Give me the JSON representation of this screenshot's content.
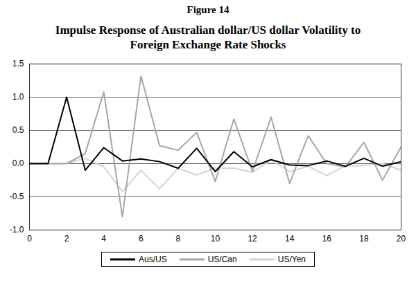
{
  "chart_data": {
    "type": "line",
    "title": "Figure 14",
    "subtitle": "Impulse Response of Australian dollar/US dollar Volatility to Foreign Exchange Rate Shocks",
    "x": [
      0,
      1,
      2,
      3,
      4,
      5,
      6,
      7,
      8,
      9,
      10,
      11,
      12,
      13,
      14,
      15,
      16,
      17,
      18,
      19,
      20
    ],
    "series": [
      {
        "name": "Aus/US",
        "color": "#000000",
        "values": [
          0,
          0,
          1.0,
          -0.1,
          0.24,
          0.04,
          0.07,
          0.03,
          -0.07,
          0.23,
          -0.12,
          0.18,
          -0.05,
          0.06,
          -0.02,
          -0.03,
          0.04,
          -0.04,
          0.08,
          -0.04,
          0.03
        ]
      },
      {
        "name": "US/Can",
        "color": "#a6a6a6",
        "values": [
          0,
          0,
          0,
          0.15,
          1.08,
          -0.8,
          1.32,
          0.27,
          0.2,
          0.47,
          -0.27,
          0.67,
          -0.12,
          0.7,
          -0.3,
          0.42,
          0.0,
          -0.05,
          0.32,
          -0.25,
          0.25
        ]
      },
      {
        "name": "US/Yen",
        "color": "#d4d4d4",
        "values": [
          0,
          0,
          0,
          0.08,
          -0.05,
          -0.42,
          -0.1,
          -0.38,
          -0.07,
          -0.17,
          -0.07,
          -0.07,
          -0.13,
          0.05,
          -0.12,
          -0.04,
          -0.18,
          -0.03,
          -0.03,
          0.0,
          -0.1
        ]
      }
    ],
    "xlim": [
      0,
      20
    ],
    "xticks": [
      0,
      2,
      4,
      6,
      8,
      10,
      12,
      14,
      16,
      18,
      20
    ],
    "ylim": [
      -1.0,
      1.5
    ],
    "yticks": [
      {
        "value": -1.0,
        "label": "-1.0"
      },
      {
        "value": -0.5,
        "label": "-0.5"
      },
      {
        "value": 0,
        "label": "0.0"
      },
      {
        "value": 0.5,
        "label": "0.5"
      },
      {
        "value": 1.0,
        "label": "1.0"
      },
      {
        "value": 1.5,
        "label": "1.5"
      }
    ],
    "grid": true,
    "legend": "bottom"
  }
}
